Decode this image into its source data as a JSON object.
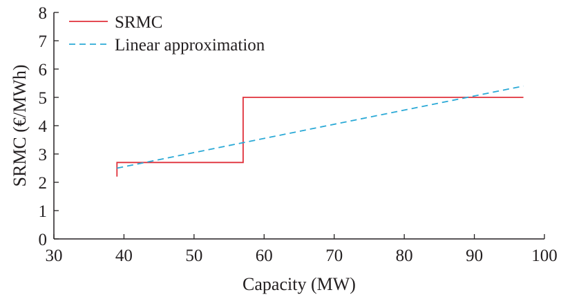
{
  "chart_data": {
    "type": "line",
    "title": "",
    "xlabel": "Capacity (MW)",
    "ylabel": "SRMC (€/MWh)",
    "xlim": [
      30,
      100
    ],
    "ylim": [
      0,
      8
    ],
    "xticks": [
      30,
      40,
      50,
      60,
      70,
      80,
      90,
      100
    ],
    "yticks": [
      0,
      1,
      2,
      3,
      4,
      5,
      6,
      7,
      8
    ],
    "grid": false,
    "legend_position": "top-left",
    "series": [
      {
        "name": "SRMC",
        "style": "solid",
        "color": "#e0303a",
        "x": [
          39,
          39,
          57,
          57,
          97
        ],
        "y": [
          2.2,
          2.7,
          2.7,
          5.0,
          5.0
        ]
      },
      {
        "name": "Linear approximation",
        "style": "dashed",
        "color": "#2aa9d6",
        "x": [
          39,
          97
        ],
        "y": [
          2.5,
          5.4
        ]
      }
    ]
  }
}
